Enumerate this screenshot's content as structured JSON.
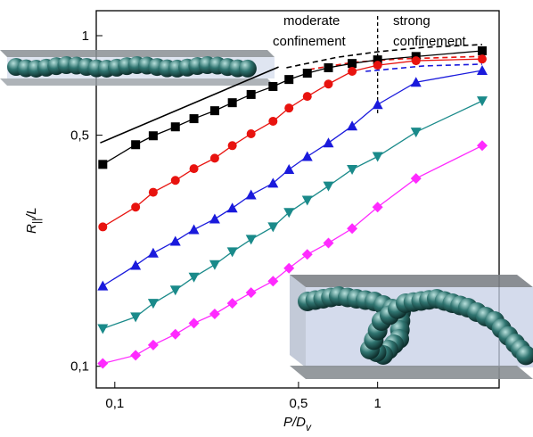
{
  "chart_data": {
    "type": "line",
    "xlabel": {
      "main": "P/D",
      "sub": "v"
    },
    "ylabel": {
      "main": "R",
      "sub": "||",
      "rest": "/L"
    },
    "log_x": true,
    "log_y": true,
    "xlim": [
      0.085,
      2.9
    ],
    "ylim": [
      0.086,
      1.19
    ],
    "xticks": [
      {
        "value": 0.1,
        "label": "0,1"
      },
      {
        "value": 0.5,
        "label": "0,5"
      },
      1
    ],
    "yticks": [
      {
        "value": 0.1,
        "label": "0,1"
      },
      {
        "value": 0.5,
        "label": "0,5"
      },
      1
    ],
    "x": [
      0.09,
      0.12,
      0.14,
      0.17,
      0.2,
      0.24,
      0.28,
      0.33,
      0.4,
      0.46,
      0.54,
      0.65,
      0.8,
      1.0,
      1.4,
      2.5
    ],
    "series": [
      {
        "color": "#000000",
        "marker": "square",
        "values": [
          0.408,
          0.468,
          0.498,
          0.53,
          0.561,
          0.593,
          0.627,
          0.664,
          0.702,
          0.737,
          0.77,
          0.8,
          0.824,
          0.845,
          0.865,
          0.9
        ]
      },
      {
        "color": "#e8130f",
        "marker": "circle",
        "values": [
          0.264,
          0.303,
          0.336,
          0.365,
          0.396,
          0.426,
          0.465,
          0.505,
          0.551,
          0.604,
          0.655,
          0.714,
          0.78,
          0.814,
          0.84,
          0.85
        ]
      },
      {
        "color": "#1a1adc",
        "marker": "triangle-up",
        "values": [
          0.175,
          0.202,
          0.22,
          0.239,
          0.259,
          0.279,
          0.301,
          0.33,
          0.358,
          0.394,
          0.431,
          0.474,
          0.533,
          0.619,
          0.723,
          0.785
        ]
      },
      {
        "color": "#1a8a8a",
        "marker": "triangle-down",
        "values": [
          0.13,
          0.141,
          0.155,
          0.17,
          0.186,
          0.203,
          0.222,
          0.242,
          0.264,
          0.292,
          0.318,
          0.351,
          0.394,
          0.431,
          0.511,
          0.635
        ]
      },
      {
        "color": "#ff2aff",
        "marker": "diamond",
        "values": [
          0.102,
          0.108,
          0.116,
          0.125,
          0.135,
          0.144,
          0.155,
          0.167,
          0.181,
          0.198,
          0.218,
          0.236,
          0.261,
          0.303,
          0.37,
          0.465
        ]
      }
    ],
    "curves": [
      {
        "color": "#000000",
        "dash": false,
        "x": [
          0.088,
          0.42
        ],
        "values": [
          0.474,
          0.804
        ]
      },
      {
        "color": "#000000",
        "dash": true,
        "x": [
          0.45,
          0.7,
          1.0,
          1.5,
          2.5
        ],
        "values": [
          0.8,
          0.86,
          0.894,
          0.922,
          0.94
        ]
      },
      {
        "color": "#e8130f",
        "dash": true,
        "x": [
          0.55,
          0.8,
          1.2,
          2.5
        ],
        "values": [
          0.79,
          0.83,
          0.85,
          0.866
        ]
      },
      {
        "color": "#1a1adc",
        "dash": true,
        "x": [
          0.9,
          1.5,
          2.5
        ],
        "values": [
          0.78,
          0.81,
          0.82
        ]
      }
    ],
    "vline": 1.0,
    "annotations": {
      "moderate": [
        "moderate",
        "confinement"
      ],
      "strong": [
        "strong",
        "confinement"
      ]
    }
  }
}
